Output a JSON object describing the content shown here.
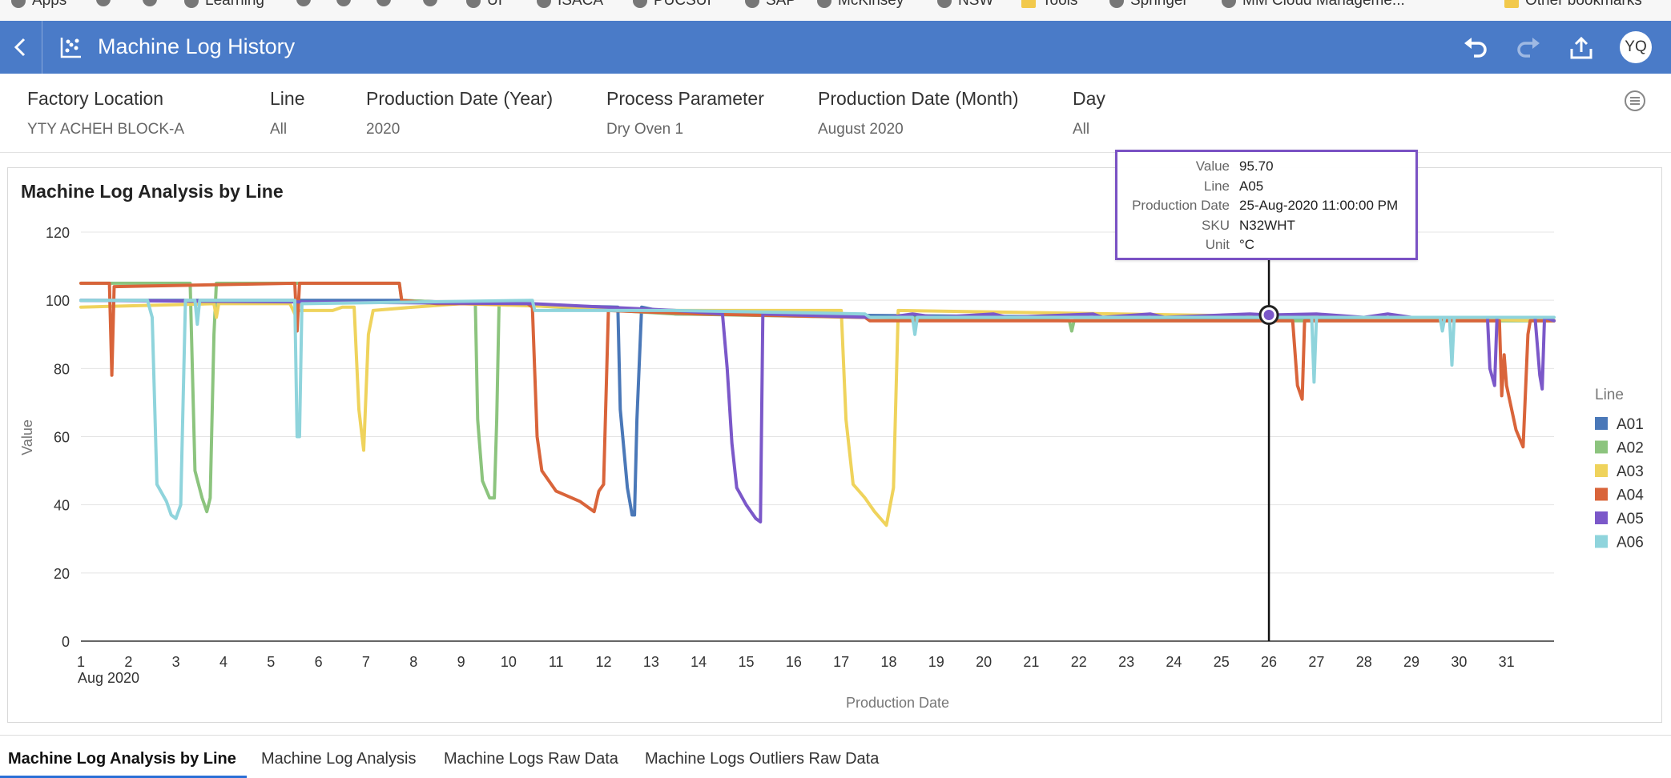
{
  "bookmarks": [
    {
      "label": "Apps"
    },
    {
      "label": ""
    },
    {
      "label": ""
    },
    {
      "label": "Learning"
    },
    {
      "label": ""
    },
    {
      "label": ""
    },
    {
      "label": ""
    },
    {
      "label": ""
    },
    {
      "label": "UI"
    },
    {
      "label": "ISACA"
    },
    {
      "label": "PUCSUI"
    },
    {
      "label": "SAP"
    },
    {
      "label": "McKinsey"
    },
    {
      "label": "NSW"
    },
    {
      "label": "Tools"
    },
    {
      "label": "Springer"
    },
    {
      "label": "MM Cloud Manageme..."
    },
    {
      "label": "Other bookmarks"
    }
  ],
  "header": {
    "title": "Machine Log History",
    "avatar": "YQ",
    "bg_color": "#4a7bc8"
  },
  "filters": [
    {
      "label": "Factory Location",
      "value": "YTY ACHEH BLOCK-A"
    },
    {
      "label": "Line",
      "value": "All"
    },
    {
      "label": "Production Date (Year)",
      "value": "2020"
    },
    {
      "label": "Process Parameter",
      "value": "Dry Oven 1"
    },
    {
      "label": "Production Date (Month)",
      "value": "August 2020"
    },
    {
      "label": "Day",
      "value": "All"
    }
  ],
  "tooltip": {
    "rows": [
      {
        "key": "Value",
        "value": "95.70"
      },
      {
        "key": "Line",
        "value": "A05"
      },
      {
        "key": "Production Date",
        "value": "25-Aug-2020 11:00:00 PM"
      },
      {
        "key": "SKU",
        "value": "N32WHT"
      },
      {
        "key": "Unit",
        "value": "°C"
      }
    ]
  },
  "tabs": [
    {
      "label": "Machine Log Analysis by Line",
      "active": true
    },
    {
      "label": "Machine Log Analysis",
      "active": false
    },
    {
      "label": "Machine Logs Raw Data",
      "active": false
    },
    {
      "label": "Machine Logs Outliers Raw Data",
      "active": false
    }
  ],
  "chart_data": {
    "type": "line",
    "title": "Machine Log Analysis by Line",
    "xlabel": "Production Date",
    "ylabel": "Value",
    "x_first_label_sub": "Aug 2020",
    "xlim": [
      1,
      32
    ],
    "ylim": [
      0,
      120
    ],
    "y_ticks": [
      0,
      20,
      40,
      60,
      80,
      100,
      120
    ],
    "x_ticks": [
      "1",
      "2",
      "3",
      "4",
      "5",
      "6",
      "7",
      "8",
      "9",
      "10",
      "11",
      "12",
      "13",
      "14",
      "15",
      "16",
      "17",
      "18",
      "19",
      "20",
      "21",
      "22",
      "23",
      "24",
      "25",
      "26",
      "27",
      "28",
      "29",
      "30",
      "31"
    ],
    "grid": true,
    "legend_title": "Line",
    "legend_position": "right",
    "highlight": {
      "x": 26.0,
      "y": 95.7,
      "series": "A05"
    },
    "series": [
      {
        "name": "A01",
        "color": "#4a78b8",
        "points": [
          [
            1,
            100
          ],
          [
            7.7,
            100
          ],
          [
            10.5,
            98.5
          ],
          [
            12.3,
            98
          ],
          [
            12.35,
            68
          ],
          [
            12.5,
            45
          ],
          [
            12.6,
            37
          ],
          [
            12.65,
            37
          ],
          [
            12.7,
            65
          ],
          [
            12.8,
            98
          ],
          [
            13.5,
            96
          ],
          [
            32,
            94
          ]
        ]
      },
      {
        "name": "A02",
        "color": "#8cc47e",
        "points": [
          [
            1,
            105
          ],
          [
            3.3,
            105
          ],
          [
            3.4,
            50
          ],
          [
            3.55,
            42
          ],
          [
            3.65,
            38
          ],
          [
            3.72,
            42
          ],
          [
            3.8,
            90
          ],
          [
            3.85,
            105
          ],
          [
            7.7,
            105
          ],
          [
            7.75,
            100
          ],
          [
            9.3,
            99
          ],
          [
            9.35,
            65
          ],
          [
            9.45,
            47
          ],
          [
            9.6,
            42
          ],
          [
            9.7,
            42
          ],
          [
            9.75,
            65
          ],
          [
            9.8,
            99
          ],
          [
            13.5,
            96
          ],
          [
            17.5,
            95
          ],
          [
            21.8,
            94
          ],
          [
            21.85,
            91
          ],
          [
            21.9,
            94
          ],
          [
            32,
            94
          ]
        ]
      },
      {
        "name": "A03",
        "color": "#efd35c",
        "points": [
          [
            1,
            98
          ],
          [
            3.8,
            99
          ],
          [
            3.85,
            95
          ],
          [
            3.9,
            99
          ],
          [
            5.4,
            99
          ],
          [
            5.5,
            96
          ],
          [
            5.6,
            97
          ],
          [
            6.3,
            97
          ],
          [
            6.5,
            98
          ],
          [
            6.75,
            98
          ],
          [
            6.85,
            68
          ],
          [
            6.95,
            56
          ],
          [
            7.05,
            90
          ],
          [
            7.15,
            97
          ],
          [
            8,
            98
          ],
          [
            9,
            99
          ],
          [
            13.5,
            97
          ],
          [
            17.0,
            97
          ],
          [
            17.1,
            65
          ],
          [
            17.25,
            46
          ],
          [
            17.5,
            42
          ],
          [
            17.7,
            38
          ],
          [
            17.95,
            34
          ],
          [
            18.1,
            45
          ],
          [
            18.2,
            97
          ],
          [
            32,
            94
          ]
        ]
      },
      {
        "name": "A04",
        "color": "#d9643a",
        "points": [
          [
            1,
            105
          ],
          [
            1.6,
            105
          ],
          [
            1.65,
            78
          ],
          [
            1.7,
            104
          ],
          [
            5.5,
            105
          ],
          [
            5.55,
            91
          ],
          [
            5.6,
            105
          ],
          [
            7.7,
            105
          ],
          [
            7.75,
            100
          ],
          [
            8.5,
            99
          ],
          [
            10.4,
            99
          ],
          [
            10.5,
            98
          ],
          [
            10.6,
            60
          ],
          [
            10.7,
            50
          ],
          [
            11.0,
            44
          ],
          [
            11.5,
            41
          ],
          [
            11.8,
            38
          ],
          [
            11.9,
            44
          ],
          [
            12.0,
            46
          ],
          [
            12.1,
            97
          ],
          [
            14,
            96
          ],
          [
            17.5,
            95
          ],
          [
            17.6,
            94
          ],
          [
            26.5,
            94
          ],
          [
            26.6,
            75
          ],
          [
            26.7,
            71
          ],
          [
            26.75,
            94
          ],
          [
            30.85,
            94
          ],
          [
            30.9,
            72
          ],
          [
            30.95,
            84
          ],
          [
            31.0,
            75
          ],
          [
            31.2,
            62
          ],
          [
            31.35,
            57
          ],
          [
            31.45,
            90
          ],
          [
            31.5,
            94
          ],
          [
            32,
            94
          ]
        ]
      },
      {
        "name": "A05",
        "color": "#7b58c9",
        "points": [
          [
            1,
            100
          ],
          [
            10.5,
            99
          ],
          [
            13.5,
            97
          ],
          [
            14.5,
            96
          ],
          [
            14.6,
            80
          ],
          [
            14.7,
            58
          ],
          [
            14.8,
            45
          ],
          [
            15.0,
            40
          ],
          [
            15.2,
            36
          ],
          [
            15.3,
            35
          ],
          [
            15.35,
            96
          ],
          [
            17.6,
            95
          ],
          [
            18,
            95
          ],
          [
            18.5,
            96
          ],
          [
            19,
            95
          ],
          [
            20.2,
            96
          ],
          [
            20.5,
            95
          ],
          [
            22.3,
            96
          ],
          [
            22.5,
            95
          ],
          [
            23.5,
            96
          ],
          [
            23.8,
            95
          ],
          [
            25.6,
            96
          ],
          [
            26,
            95.7
          ],
          [
            27,
            96
          ],
          [
            28,
            95
          ],
          [
            28.5,
            96
          ],
          [
            29,
            95
          ],
          [
            30.6,
            95
          ],
          [
            30.65,
            80
          ],
          [
            30.75,
            75
          ],
          [
            30.8,
            95
          ],
          [
            31.6,
            95
          ],
          [
            31.7,
            78
          ],
          [
            31.75,
            74
          ],
          [
            31.8,
            95
          ],
          [
            32,
            94
          ]
        ]
      },
      {
        "name": "A06",
        "color": "#8fd4dc",
        "points": [
          [
            1,
            100
          ],
          [
            2.4,
            100
          ],
          [
            2.5,
            95
          ],
          [
            2.6,
            46
          ],
          [
            2.8,
            41
          ],
          [
            2.9,
            37
          ],
          [
            3.0,
            36
          ],
          [
            3.1,
            40
          ],
          [
            3.2,
            100
          ],
          [
            3.4,
            100
          ],
          [
            3.45,
            93
          ],
          [
            3.5,
            100
          ],
          [
            5.5,
            100
          ],
          [
            5.55,
            60
          ],
          [
            5.6,
            60
          ],
          [
            5.65,
            99
          ],
          [
            10.5,
            100
          ],
          [
            10.55,
            97
          ],
          [
            13.5,
            97
          ],
          [
            17.5,
            96
          ],
          [
            17.6,
            95
          ],
          [
            18.5,
            95
          ],
          [
            18.55,
            90
          ],
          [
            18.6,
            95
          ],
          [
            32,
            95
          ],
          [
            29.6,
            95
          ],
          [
            29.65,
            91
          ],
          [
            29.7,
            95
          ],
          [
            29.8,
            95
          ],
          [
            29.85,
            81
          ],
          [
            29.9,
            95
          ],
          [
            26.9,
            95
          ],
          [
            26.95,
            76
          ],
          [
            27.0,
            95
          ]
        ]
      }
    ]
  }
}
